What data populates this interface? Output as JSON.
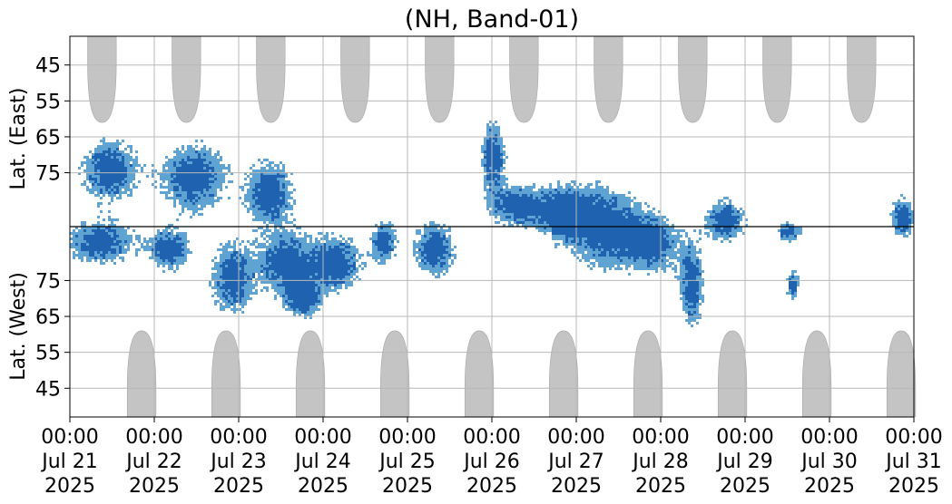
{
  "chart_data": {
    "type": "heatmap",
    "title": "(NH, Band-01)",
    "ylabel_top": "Lat. (East)",
    "ylabel_bottom": "Lat. (West)",
    "xlabel": "",
    "x_range": [
      "2025-07-21 00:00",
      "2025-07-31 00:00"
    ],
    "x_ticks": [
      {
        "time": "00:00",
        "date": "Jul 21",
        "year": "2025"
      },
      {
        "time": "00:00",
        "date": "Jul 22",
        "year": "2025"
      },
      {
        "time": "00:00",
        "date": "Jul 23",
        "year": "2025"
      },
      {
        "time": "00:00",
        "date": "Jul 24",
        "year": "2025"
      },
      {
        "time": "00:00",
        "date": "Jul 25",
        "year": "2025"
      },
      {
        "time": "00:00",
        "date": "Jul 26",
        "year": "2025"
      },
      {
        "time": "00:00",
        "date": "Jul 27",
        "year": "2025"
      },
      {
        "time": "00:00",
        "date": "Jul 28",
        "year": "2025"
      },
      {
        "time": "00:00",
        "date": "Jul 29",
        "year": "2025"
      },
      {
        "time": "00:00",
        "date": "Jul 30",
        "year": "2025"
      },
      {
        "time": "00:00",
        "date": "Jul 31",
        "year": "2025"
      }
    ],
    "y_ticks_east": [
      "45",
      "55",
      "65",
      "75"
    ],
    "y_ticks_west": [
      "75",
      "65",
      "55",
      "45"
    ],
    "y_range_east": [
      37,
      90
    ],
    "y_range_west": [
      90,
      37
    ],
    "divider": "90 (pole)",
    "grid": true,
    "colors": {
      "activity_dark": "#1f63b0",
      "activity_light": "#5fa3d2",
      "night_shading": "#c4c4c4",
      "grid": "#b8b8b8"
    },
    "night_shading": {
      "east_peaks_day": [
        0.38,
        1.38,
        2.38,
        3.38,
        4.38,
        5.38,
        6.38,
        7.38,
        8.38,
        9.38
      ],
      "east_max_extent_lat": 61,
      "west_peaks_day": [
        0.85,
        1.85,
        2.85,
        3.85,
        4.85,
        5.85,
        6.85,
        7.85,
        8.85,
        9.85
      ],
      "west_max_extent_lat": 61
    },
    "activity_blobs": [
      {
        "day": 0.45,
        "lat_signed": 16,
        "spread_days": 0.35,
        "spread_lat": 9
      },
      {
        "day": 0.35,
        "lat_signed": -4,
        "spread_days": 0.4,
        "spread_lat": 6
      },
      {
        "day": 1.45,
        "lat_signed": 14,
        "spread_days": 0.4,
        "spread_lat": 10
      },
      {
        "day": 1.15,
        "lat_signed": -6,
        "spread_days": 0.25,
        "spread_lat": 6
      },
      {
        "day": 1.9,
        "lat_signed": -14,
        "spread_days": 0.25,
        "spread_lat": 10
      },
      {
        "day": 2.35,
        "lat_signed": 10,
        "spread_days": 0.3,
        "spread_lat": 9
      },
      {
        "day": 2.55,
        "lat_signed": -10,
        "spread_days": 0.35,
        "spread_lat": 9
      },
      {
        "day": 3.15,
        "lat_signed": -10,
        "spread_days": 0.3,
        "spread_lat": 8
      },
      {
        "day": 2.75,
        "lat_signed": -20,
        "spread_days": 0.2,
        "spread_lat": 5
      },
      {
        "day": 3.7,
        "lat_signed": -4,
        "spread_days": 0.15,
        "spread_lat": 6
      },
      {
        "day": 4.3,
        "lat_signed": -6,
        "spread_days": 0.25,
        "spread_lat": 8
      },
      {
        "day": 5.0,
        "lat_signed": 20,
        "spread_days": 0.15,
        "spread_lat": 10
      },
      {
        "day": 5.3,
        "lat_signed": 6,
        "spread_days": 0.35,
        "spread_lat": 6
      },
      {
        "day": 5.85,
        "lat_signed": 4,
        "spread_days": 0.3,
        "spread_lat": 8
      },
      {
        "day": 6.35,
        "lat_signed": 0,
        "spread_days": 0.4,
        "spread_lat": 12
      },
      {
        "day": 6.9,
        "lat_signed": -4,
        "spread_days": 0.3,
        "spread_lat": 8
      },
      {
        "day": 7.35,
        "lat_signed": -16,
        "spread_days": 0.15,
        "spread_lat": 12
      },
      {
        "day": 7.75,
        "lat_signed": 2,
        "spread_days": 0.25,
        "spread_lat": 6
      },
      {
        "day": 8.5,
        "lat_signed": -1,
        "spread_days": 0.15,
        "spread_lat": 3
      },
      {
        "day": 8.55,
        "lat_signed": -16,
        "spread_days": 0.08,
        "spread_lat": 4
      },
      {
        "day": 9.85,
        "lat_signed": 3,
        "spread_days": 0.15,
        "spread_lat": 6
      }
    ]
  }
}
